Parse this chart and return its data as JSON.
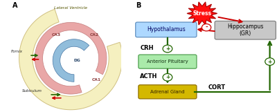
{
  "bg_color": "#ffffff",
  "panel_a_label": "A",
  "panel_b_label": "B",
  "lateral_ventricle_text": "Lateral Ventricle",
  "ca1": "CA1",
  "ca2": "CA2",
  "ca3": "CA3",
  "dg": "DG",
  "fornix": "Fornix",
  "subiculum": "Subiculum",
  "stress": "Stress",
  "hypothalamus": "Hypothalamus",
  "hippocampus": "Hippocampus\n(GR)",
  "crh": "CRH",
  "ant_pit": "Anterior Pituitary",
  "acth": "ACTH",
  "adrenal": "Adrenal Gland",
  "cort": "CORT",
  "pink_color": "#E8A0A0",
  "blue_color": "#88B8D8",
  "ventricle_color": "#F5F0C0",
  "ventricle_edge": "#D0C080",
  "green_arrow": "#226600",
  "red_arrow": "#CC0000",
  "hypo_fill": "#ADD8FF",
  "hypo_edge": "#6090C0",
  "hippo_fill": "#C8C8C8",
  "hippo_edge": "#808080",
  "antpit_fill": "#AAEAAA",
  "antpit_edge": "#50A050",
  "adrenal_fill": "#D4B800",
  "adrenal_edge": "#907000",
  "stress_fill": "#FF1010",
  "stress_edge": "#AA0000",
  "pink_edge": "#C07878"
}
